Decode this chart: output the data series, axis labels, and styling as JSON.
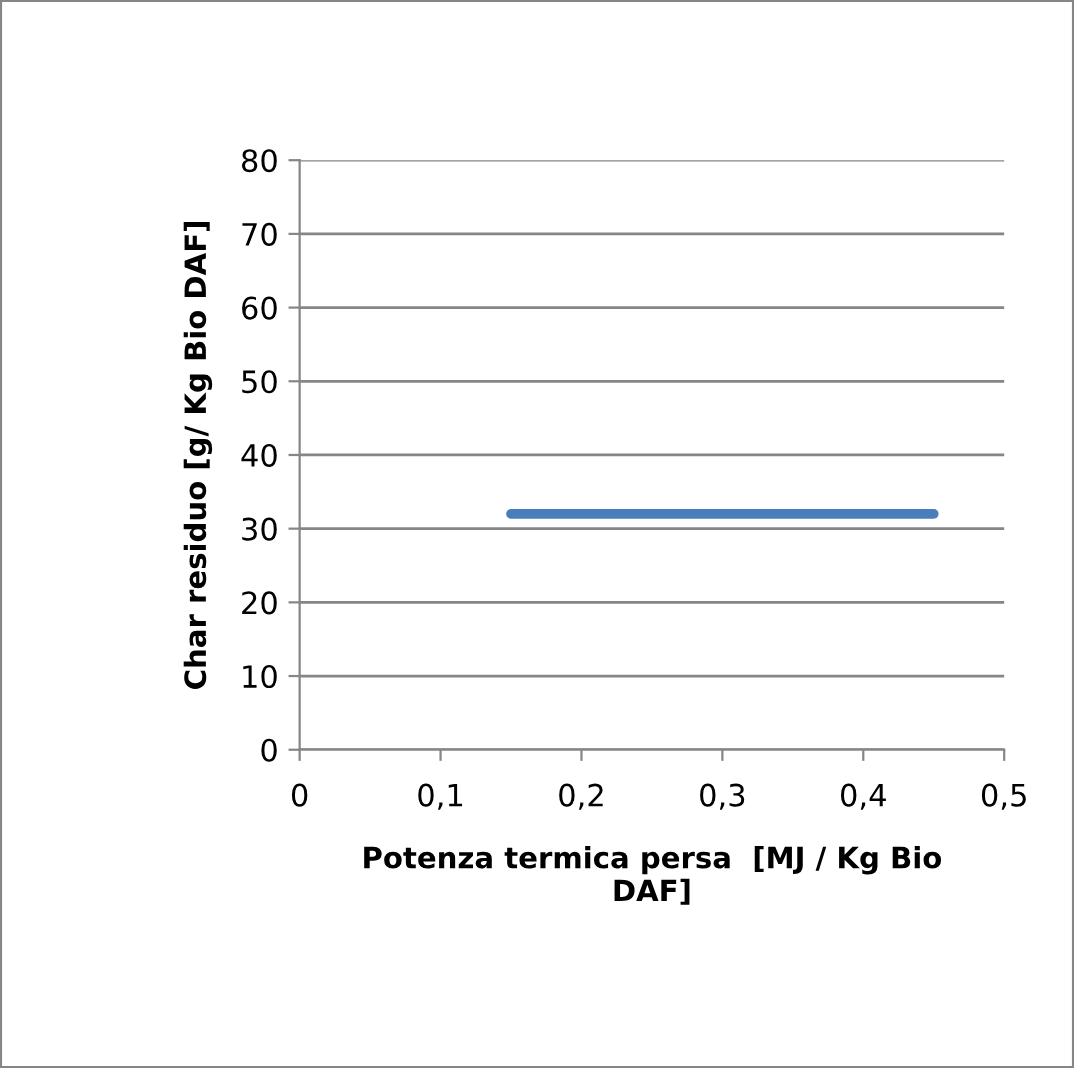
{
  "chart_data": {
    "type": "line",
    "x": [
      0.15,
      0.45
    ],
    "series": [
      {
        "color": "#4a7ebb",
        "values": [
          32,
          32
        ]
      }
    ],
    "xlabel": "Potenza termica persa  [MJ / Kg Bio\nDAF]",
    "ylabel": "Char residuo [g/ Kg Bio DAF]",
    "xlim": [
      0,
      0.5
    ],
    "xticks": [
      0,
      {
        "value": 0.1,
        "label": "0,1"
      },
      {
        "value": 0.2,
        "label": "0,2"
      },
      {
        "value": 0.3,
        "label": "0,3"
      },
      {
        "value": 0.4,
        "label": "0,4"
      },
      {
        "value": 0.5,
        "label": "0,5"
      }
    ],
    "ylim": [
      0,
      80
    ],
    "yticks": [
      0,
      10,
      20,
      30,
      40,
      50,
      60,
      70,
      80
    ],
    "grid": "y",
    "legend": false,
    "marker": "none",
    "line_style": "solid"
  }
}
